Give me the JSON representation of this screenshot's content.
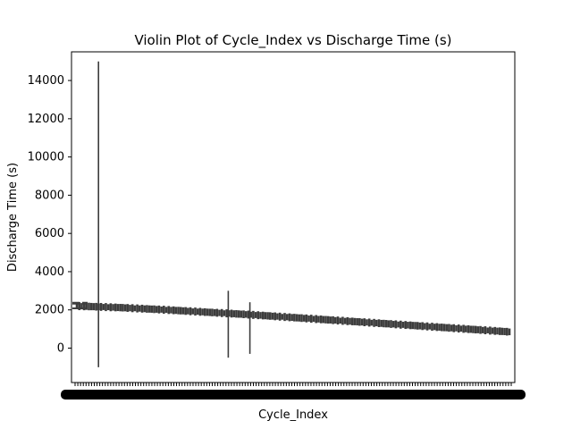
{
  "chart_data": {
    "type": "violin",
    "title": "Violin Plot of Cycle_Index vs Discharge Time (s)",
    "xlabel": "Cycle_Index",
    "ylabel": "Discharge Time (s)",
    "ylim": [
      -1800,
      15500
    ],
    "yticks": [
      0,
      2000,
      4000,
      6000,
      8000,
      10000,
      12000,
      14000
    ],
    "ytick_labels": [
      "0",
      "2000",
      "4000",
      "6000",
      "8000",
      "10000",
      "12000",
      "14000"
    ],
    "x_categories_note": "x tick labels are densely overlapped and illegible",
    "grid": false,
    "legend": "none",
    "series": [
      {
        "trend": [
          {
            "x_frac": 0.0,
            "y": 2200
          },
          {
            "x_frac": 0.1,
            "y": 2120
          },
          {
            "x_frac": 0.2,
            "y": 2010
          },
          {
            "x_frac": 0.3,
            "y": 1880
          },
          {
            "x_frac": 0.4,
            "y": 1750
          },
          {
            "x_frac": 0.5,
            "y": 1600
          },
          {
            "x_frac": 0.6,
            "y": 1450
          },
          {
            "x_frac": 0.7,
            "y": 1300
          },
          {
            "x_frac": 0.8,
            "y": 1150
          },
          {
            "x_frac": 0.9,
            "y": 1000
          },
          {
            "x_frac": 1.0,
            "y": 850
          }
        ],
        "outliers": [
          {
            "x_frac": 0.05,
            "ymin": -1000,
            "ymax": 15000
          },
          {
            "x_frac": 0.35,
            "ymin": -500,
            "ymax": 3000
          },
          {
            "x_frac": 0.4,
            "ymin": -300,
            "ymax": 2400
          }
        ]
      }
    ],
    "color": "#3d3d3d"
  }
}
